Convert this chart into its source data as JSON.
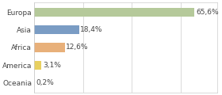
{
  "categories": [
    "Europa",
    "Asia",
    "Africa",
    "America",
    "Oceania"
  ],
  "values": [
    65.6,
    18.4,
    12.6,
    3.1,
    0.2
  ],
  "labels": [
    "65,6%",
    "18,4%",
    "12,6%",
    "3,1%",
    "0,2%"
  ],
  "bar_colors": [
    "#b5c99a",
    "#7a9cc4",
    "#e8b07a",
    "#e8d060",
    "#d0d0d0"
  ],
  "background_color": "#ffffff",
  "xlim": [
    0,
    75
  ],
  "bar_height": 0.5,
  "label_fontsize": 6.5,
  "tick_fontsize": 6.5,
  "grid_xticks": [
    0,
    20,
    40,
    60
  ]
}
